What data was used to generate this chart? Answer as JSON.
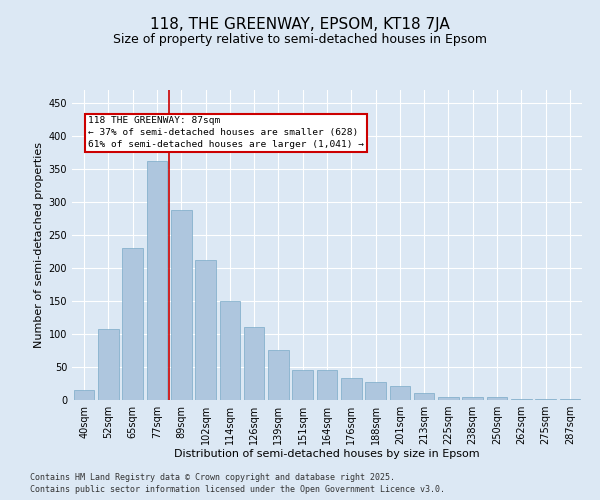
{
  "title": "118, THE GREENWAY, EPSOM, KT18 7JA",
  "subtitle": "Size of property relative to semi-detached houses in Epsom",
  "xlabel": "Distribution of semi-detached houses by size in Epsom",
  "ylabel": "Number of semi-detached properties",
  "footnote1": "Contains HM Land Registry data © Crown copyright and database right 2025.",
  "footnote2": "Contains public sector information licensed under the Open Government Licence v3.0.",
  "categories": [
    "40sqm",
    "52sqm",
    "65sqm",
    "77sqm",
    "89sqm",
    "102sqm",
    "114sqm",
    "126sqm",
    "139sqm",
    "151sqm",
    "164sqm",
    "176sqm",
    "188sqm",
    "201sqm",
    "213sqm",
    "225sqm",
    "238sqm",
    "250sqm",
    "262sqm",
    "275sqm",
    "287sqm"
  ],
  "values": [
    15,
    108,
    230,
    363,
    288,
    213,
    150,
    111,
    76,
    45,
    45,
    33,
    28,
    21,
    10,
    5,
    5,
    5,
    2,
    1,
    2
  ],
  "bar_color": "#aec6de",
  "bar_edge_color": "#7aaac8",
  "property_line_color": "#cc0000",
  "annotation_text": "118 THE GREENWAY: 87sqm\n← 37% of semi-detached houses are smaller (628)\n61% of semi-detached houses are larger (1,041) →",
  "annotation_box_color": "#cc0000",
  "ylim": [
    0,
    470
  ],
  "yticks": [
    0,
    50,
    100,
    150,
    200,
    250,
    300,
    350,
    400,
    450
  ],
  "background_color": "#dce8f4",
  "plot_background_color": "#dce8f4",
  "grid_color": "#ffffff",
  "title_fontsize": 11,
  "subtitle_fontsize": 9,
  "axis_label_fontsize": 8,
  "tick_fontsize": 7,
  "footnote_fontsize": 6
}
